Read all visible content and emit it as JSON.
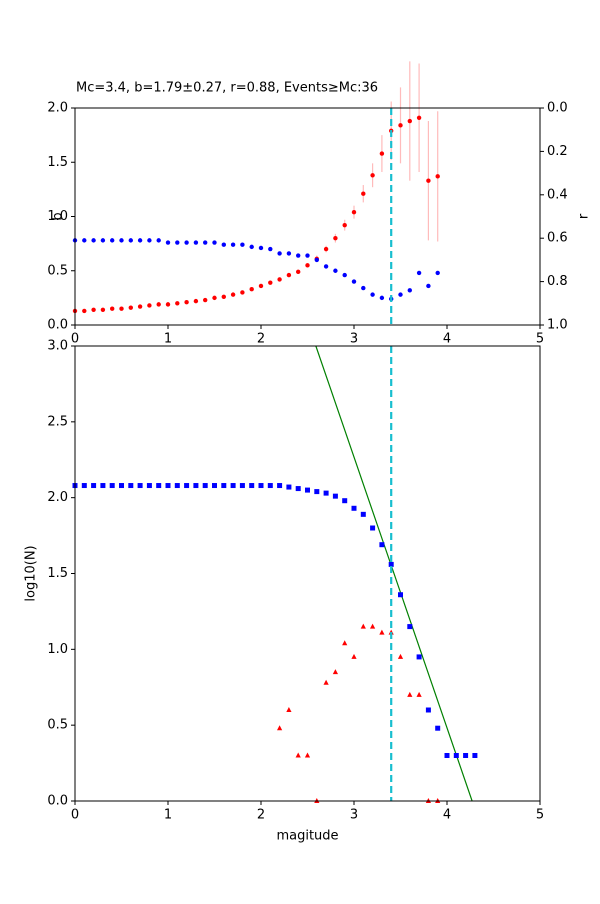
{
  "chart_data": [
    {
      "type": "scatter",
      "title": "Mc=3.4, b=1.79±0.27, r=0.88, Events≥Mc:36",
      "ylabel": "b",
      "y2label": "r",
      "xlim": [
        0,
        5
      ],
      "xticks": [
        0,
        1,
        2,
        3,
        4,
        5
      ],
      "ylim": [
        0,
        2
      ],
      "yticks": [
        {
          "value": 0,
          "label": "0.0"
        },
        {
          "value": 0.5,
          "label": "0.5"
        },
        {
          "value": 1,
          "label": "1.0"
        },
        {
          "value": 1.5,
          "label": "1.5"
        },
        {
          "value": 2,
          "label": "2.0"
        }
      ],
      "y2lim": [
        1,
        0
      ],
      "y2ticks": [
        {
          "value": 0,
          "label": "0.0"
        },
        {
          "value": 0.2,
          "label": "0.2"
        },
        {
          "value": 0.4,
          "label": "0.4"
        },
        {
          "value": 0.6,
          "label": "0.6"
        },
        {
          "value": 0.8,
          "label": "0.8"
        },
        {
          "value": 1,
          "label": "1.0"
        }
      ],
      "vline": 3.4,
      "vline_color": "#17becf",
      "series": [
        {
          "color": "#ff0000",
          "marker": "circle",
          "error_color": "#ffbbbb",
          "x": [
            0,
            0.1,
            0.2,
            0.3,
            0.4,
            0.5,
            0.6,
            0.7,
            0.8,
            0.9,
            1,
            1.1,
            1.2,
            1.3,
            1.4,
            1.5,
            1.6,
            1.7,
            1.8,
            1.9,
            2,
            2.1,
            2.2,
            2.3,
            2.4,
            2.5,
            2.6,
            2.7,
            2.8,
            2.9,
            3,
            3.1,
            3.2,
            3.3,
            3.4,
            3.5,
            3.6,
            3.7,
            3.8,
            3.9
          ],
          "values": [
            0.13,
            0.13,
            0.14,
            0.14,
            0.15,
            0.15,
            0.16,
            0.17,
            0.18,
            0.19,
            0.19,
            0.2,
            0.21,
            0.22,
            0.23,
            0.25,
            0.26,
            0.28,
            0.3,
            0.33,
            0.36,
            0.39,
            0.42,
            0.46,
            0.49,
            0.55,
            0.61,
            0.7,
            0.8,
            0.92,
            1.04,
            1.21,
            1.38,
            1.58,
            1.79,
            1.84,
            1.88,
            1.91,
            1.33,
            1.37
          ],
          "errors": [
            0.01,
            0.01,
            0.01,
            0.01,
            0.01,
            0.01,
            0.01,
            0.01,
            0.01,
            0.01,
            0.01,
            0.01,
            0.01,
            0.01,
            0.01,
            0.01,
            0.01,
            0.01,
            0.01,
            0.01,
            0.01,
            0.01,
            0.02,
            0.02,
            0.02,
            0.02,
            0.03,
            0.03,
            0.04,
            0.05,
            0.06,
            0.08,
            0.11,
            0.17,
            0.27,
            0.35,
            0.55,
            0.5,
            0.55,
            0.6
          ]
        },
        {
          "color": "#0000ff",
          "marker": "circle",
          "axis": "y2",
          "x": [
            0,
            0.1,
            0.2,
            0.3,
            0.4,
            0.5,
            0.6,
            0.7,
            0.8,
            0.9,
            1,
            1.1,
            1.2,
            1.3,
            1.4,
            1.5,
            1.6,
            1.7,
            1.8,
            1.9,
            2,
            2.1,
            2.2,
            2.3,
            2.4,
            2.5,
            2.6,
            2.7,
            2.8,
            2.9,
            3,
            3.1,
            3.2,
            3.3,
            3.4,
            3.5,
            3.6,
            3.7,
            3.8,
            3.9
          ],
          "values": [
            0.61,
            0.61,
            0.61,
            0.61,
            0.61,
            0.61,
            0.61,
            0.61,
            0.61,
            0.61,
            0.62,
            0.62,
            0.62,
            0.62,
            0.62,
            0.62,
            0.63,
            0.63,
            0.63,
            0.64,
            0.645,
            0.65,
            0.67,
            0.67,
            0.68,
            0.68,
            0.7,
            0.73,
            0.75,
            0.77,
            0.8,
            0.83,
            0.86,
            0.875,
            0.88,
            0.86,
            0.84,
            0.76,
            0.82,
            0.76
          ]
        }
      ]
    },
    {
      "type": "scatter",
      "xlabel": "magitude",
      "ylabel": "log10(N)",
      "xlim": [
        0,
        5
      ],
      "xticks": [
        0,
        1,
        2,
        3,
        4,
        5
      ],
      "ylim": [
        0,
        3
      ],
      "yticks": [
        {
          "value": 0,
          "label": "0.0"
        },
        {
          "value": 0.5,
          "label": "0.5"
        },
        {
          "value": 1,
          "label": "1.0"
        },
        {
          "value": 1.5,
          "label": "1.5"
        },
        {
          "value": 2,
          "label": "2.0"
        },
        {
          "value": 2.5,
          "label": "2.5"
        },
        {
          "value": 3,
          "label": "3.0"
        }
      ],
      "vline": 3.4,
      "vline_color": "#17becf",
      "fit": {
        "color": "#008000",
        "x": [
          2.59,
          4.27
        ],
        "values": [
          3,
          0
        ]
      },
      "series": [
        {
          "color": "#0000ff",
          "marker": "square",
          "x": [
            0,
            0.1,
            0.2,
            0.3,
            0.4,
            0.5,
            0.6,
            0.7,
            0.8,
            0.9,
            1,
            1.1,
            1.2,
            1.3,
            1.4,
            1.5,
            1.6,
            1.7,
            1.8,
            1.9,
            2,
            2.1,
            2.2,
            2.3,
            2.4,
            2.5,
            2.6,
            2.7,
            2.8,
            2.9,
            3,
            3.1,
            3.2,
            3.3,
            3.4,
            3.5,
            3.6,
            3.7,
            3.8,
            3.9,
            4,
            4.1,
            4.2,
            4.3
          ],
          "values": [
            2.08,
            2.08,
            2.08,
            2.08,
            2.08,
            2.08,
            2.08,
            2.08,
            2.08,
            2.08,
            2.08,
            2.08,
            2.08,
            2.08,
            2.08,
            2.08,
            2.08,
            2.08,
            2.08,
            2.08,
            2.08,
            2.08,
            2.08,
            2.07,
            2.06,
            2.05,
            2.04,
            2.03,
            2.01,
            1.98,
            1.93,
            1.89,
            1.8,
            1.69,
            1.56,
            1.36,
            1.15,
            0.95,
            0.6,
            0.48,
            0.3,
            0.3,
            0.3,
            0.3
          ]
        },
        {
          "color": "#ff0000",
          "marker": "triangle",
          "x": [
            2.2,
            2.3,
            2.4,
            2.5,
            2.6,
            2.7,
            2.8,
            2.9,
            3,
            3.1,
            3.2,
            3.3,
            3.4,
            3.5,
            3.6,
            3.7,
            3.8,
            3.9
          ],
          "values": [
            0.48,
            0.6,
            0.3,
            0.3,
            0,
            0.78,
            0.85,
            1.04,
            0.95,
            1.15,
            1.15,
            1.11,
            1.11,
            0.95,
            0.7,
            0.7,
            0,
            0
          ]
        }
      ]
    }
  ]
}
